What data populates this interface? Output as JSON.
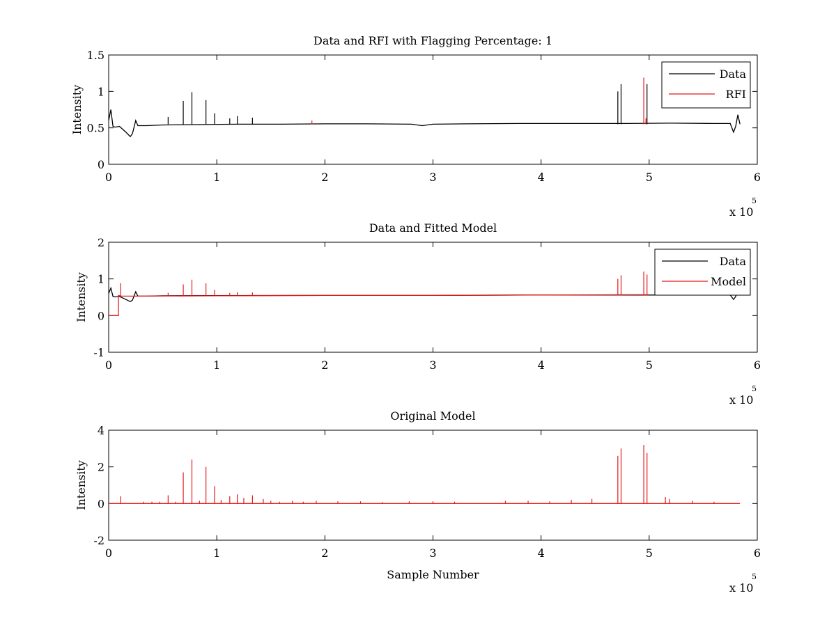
{
  "chart_data": [
    {
      "type": "line",
      "title": "Data and RFI with Flagging Percentage: 1",
      "xlabel": "",
      "ylabel": "Intensity",
      "xlim": [
        0,
        6
      ],
      "ylim": [
        0,
        1.5
      ],
      "x_multiplier": "x 10",
      "x_multiplier_exponent": "5",
      "xticks": [
        "0",
        "1",
        "2",
        "3",
        "4",
        "5",
        "6"
      ],
      "yticks": [
        "0",
        "0.5",
        "1",
        "1.5"
      ],
      "legend": {
        "position": "top-right",
        "entries": [
          "Data",
          "RFI"
        ]
      },
      "series": [
        {
          "name": "Data",
          "color": "#000000",
          "x": [
            0,
            0.02,
            0.04,
            0.06,
            0.1,
            0.16,
            0.2,
            0.22,
            0.25,
            0.27,
            0.35,
            0.5,
            0.8,
            1.2,
            1.6,
            2.0,
            2.4,
            2.8,
            2.9,
            3.0,
            3.3,
            3.8,
            4.3,
            4.8,
            5.2,
            5.6,
            5.75,
            5.78,
            5.8,
            5.82,
            5.84
          ],
          "y": [
            0.6,
            0.75,
            0.52,
            0.51,
            0.52,
            0.44,
            0.38,
            0.42,
            0.6,
            0.53,
            0.53,
            0.54,
            0.545,
            0.55,
            0.55,
            0.555,
            0.555,
            0.55,
            0.53,
            0.55,
            0.555,
            0.56,
            0.56,
            0.56,
            0.565,
            0.56,
            0.56,
            0.44,
            0.52,
            0.68,
            0.55
          ],
          "spikes": [
            {
              "x": 0.55,
              "y": 0.65
            },
            {
              "x": 0.69,
              "y": 0.87
            },
            {
              "x": 0.77,
              "y": 0.99
            },
            {
              "x": 0.9,
              "y": 0.88
            },
            {
              "x": 0.98,
              "y": 0.7
            },
            {
              "x": 1.12,
              "y": 0.63
            },
            {
              "x": 1.19,
              "y": 0.66
            },
            {
              "x": 1.33,
              "y": 0.64
            },
            {
              "x": 4.71,
              "y": 1.0
            },
            {
              "x": 4.74,
              "y": 1.1
            },
            {
              "x": 4.98,
              "y": 1.1
            }
          ]
        },
        {
          "name": "RFI",
          "color": "#e41a1c",
          "spikes": [
            {
              "x": 1.88,
              "y": 0.6
            },
            {
              "x": 4.95,
              "y": 1.19
            },
            {
              "x": 4.97,
              "y": 0.63
            }
          ]
        }
      ]
    },
    {
      "type": "line",
      "title": "Data and Fitted Model",
      "xlabel": "",
      "ylabel": "Intensity",
      "xlim": [
        0,
        6
      ],
      "ylim": [
        -1,
        2
      ],
      "x_multiplier": "x 10",
      "x_multiplier_exponent": "5",
      "xticks": [
        "0",
        "1",
        "2",
        "3",
        "4",
        "5",
        "6"
      ],
      "yticks": [
        "-1",
        "0",
        "1",
        "2"
      ],
      "legend": {
        "position": "top-right",
        "entries": [
          "Data",
          "Model"
        ]
      },
      "series": [
        {
          "name": "Data",
          "color": "#000000",
          "x": [
            0,
            0.02,
            0.04,
            0.06,
            0.1,
            0.16,
            0.2,
            0.22,
            0.25,
            0.27,
            0.35,
            0.5,
            1.0,
            2.0,
            2.8,
            3.0,
            3.8,
            4.6,
            5.0,
            5.6,
            5.75,
            5.78,
            5.8,
            5.82,
            5.84
          ],
          "y": [
            0.6,
            0.75,
            0.52,
            0.51,
            0.52,
            0.44,
            0.38,
            0.42,
            0.65,
            0.53,
            0.53,
            0.54,
            0.545,
            0.55,
            0.55,
            0.55,
            0.56,
            0.56,
            0.56,
            0.56,
            0.56,
            0.44,
            0.52,
            0.7,
            0.55
          ]
        },
        {
          "name": "Model",
          "color": "#e41a1c",
          "x": [
            0,
            0.09,
            0.09,
            0.12,
            0.3,
            1.0,
            2.0,
            3.0,
            4.0,
            5.0
          ],
          "y": [
            0,
            0,
            0.55,
            0.53,
            0.53,
            0.54,
            0.55,
            0.55,
            0.56,
            0.57
          ],
          "spikes": [
            {
              "x": 0.11,
              "y": 0.88
            },
            {
              "x": 0.55,
              "y": 0.62
            },
            {
              "x": 0.69,
              "y": 0.85
            },
            {
              "x": 0.77,
              "y": 0.98
            },
            {
              "x": 0.9,
              "y": 0.88
            },
            {
              "x": 0.98,
              "y": 0.7
            },
            {
              "x": 1.12,
              "y": 0.62
            },
            {
              "x": 1.19,
              "y": 0.64
            },
            {
              "x": 1.33,
              "y": 0.63
            },
            {
              "x": 4.71,
              "y": 1.0
            },
            {
              "x": 4.74,
              "y": 1.1
            },
            {
              "x": 4.95,
              "y": 1.2
            },
            {
              "x": 4.98,
              "y": 1.12
            }
          ]
        }
      ]
    },
    {
      "type": "line",
      "title": "Original Model",
      "xlabel": "Sample Number",
      "ylabel": "Intensity",
      "xlim": [
        0,
        6
      ],
      "ylim": [
        -2,
        4
      ],
      "x_multiplier": "x 10",
      "x_multiplier_exponent": "5",
      "xticks": [
        "0",
        "1",
        "2",
        "3",
        "4",
        "5",
        "6"
      ],
      "yticks": [
        "-2",
        "0",
        "2",
        "4"
      ],
      "series": [
        {
          "name": "Model",
          "color": "#e41a1c",
          "x": [
            0,
            5.84
          ],
          "y": [
            0,
            0
          ],
          "spikes": [
            {
              "x": 0.11,
              "y": 0.4
            },
            {
              "x": 0.32,
              "y": 0.1
            },
            {
              "x": 0.4,
              "y": 0.1
            },
            {
              "x": 0.47,
              "y": 0.1
            },
            {
              "x": 0.55,
              "y": 0.45
            },
            {
              "x": 0.62,
              "y": 0.1
            },
            {
              "x": 0.69,
              "y": 1.7
            },
            {
              "x": 0.77,
              "y": 2.4
            },
            {
              "x": 0.84,
              "y": 0.15
            },
            {
              "x": 0.9,
              "y": 2.0
            },
            {
              "x": 0.98,
              "y": 0.95
            },
            {
              "x": 1.04,
              "y": 0.2
            },
            {
              "x": 1.12,
              "y": 0.4
            },
            {
              "x": 1.19,
              "y": 0.5
            },
            {
              "x": 1.25,
              "y": 0.3
            },
            {
              "x": 1.33,
              "y": 0.45
            },
            {
              "x": 1.43,
              "y": 0.25
            },
            {
              "x": 1.5,
              "y": 0.15
            },
            {
              "x": 1.58,
              "y": 0.1
            },
            {
              "x": 1.7,
              "y": 0.15
            },
            {
              "x": 1.8,
              "y": 0.1
            },
            {
              "x": 1.92,
              "y": 0.15
            },
            {
              "x": 2.12,
              "y": 0.12
            },
            {
              "x": 2.33,
              "y": 0.12
            },
            {
              "x": 2.53,
              "y": 0.08
            },
            {
              "x": 2.78,
              "y": 0.12
            },
            {
              "x": 3.0,
              "y": 0.12
            },
            {
              "x": 3.2,
              "y": 0.1
            },
            {
              "x": 3.67,
              "y": 0.15
            },
            {
              "x": 3.88,
              "y": 0.15
            },
            {
              "x": 4.08,
              "y": 0.12
            },
            {
              "x": 4.28,
              "y": 0.2
            },
            {
              "x": 4.47,
              "y": 0.25
            },
            {
              "x": 4.71,
              "y": 2.6
            },
            {
              "x": 4.74,
              "y": 3.0
            },
            {
              "x": 4.95,
              "y": 3.2
            },
            {
              "x": 4.98,
              "y": 2.75
            },
            {
              "x": 5.15,
              "y": 0.35
            },
            {
              "x": 5.19,
              "y": 0.25
            },
            {
              "x": 5.4,
              "y": 0.15
            },
            {
              "x": 5.6,
              "y": 0.1
            }
          ]
        }
      ]
    }
  ]
}
